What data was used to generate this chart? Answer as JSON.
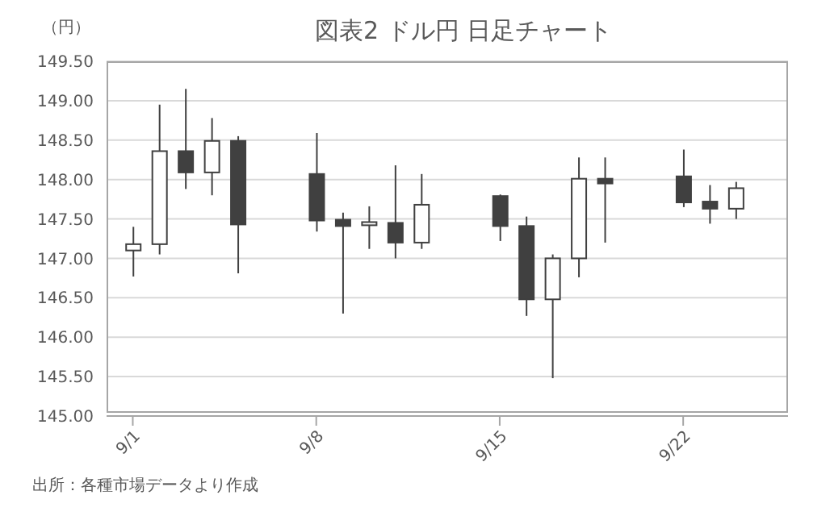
{
  "chart_data": {
    "type": "candlestick",
    "title": "図表2 ドル円 日足チャート",
    "ylabel": "（円）",
    "annotations": [
      "出所：各種市場データより作成"
    ],
    "x": [
      "--09-01",
      "--09-02",
      "--09-03",
      "--09-04",
      "--09-05",
      "--09-08",
      "--09-09",
      "--09-10",
      "--09-11",
      "--09-12",
      "--09-15",
      "--09-16",
      "--09-17",
      "--09-18",
      "--09-19",
      "--09-22",
      "--09-23",
      "--09-24"
    ],
    "ohlc": [
      [
        147.1,
        147.4,
        146.77,
        147.18
      ],
      [
        147.18,
        148.95,
        147.05,
        148.36
      ],
      [
        148.36,
        149.15,
        147.88,
        148.09
      ],
      [
        148.09,
        148.78,
        147.8,
        148.49
      ],
      [
        148.49,
        148.55,
        146.81,
        147.43
      ],
      [
        148.07,
        148.59,
        147.34,
        147.48
      ],
      [
        147.49,
        147.58,
        146.3,
        147.41
      ],
      [
        147.42,
        147.66,
        147.12,
        147.46
      ],
      [
        147.45,
        148.18,
        147.0,
        147.2
      ],
      [
        147.2,
        148.07,
        147.12,
        147.68
      ],
      [
        147.79,
        147.81,
        147.22,
        147.41
      ],
      [
        147.41,
        147.53,
        146.27,
        146.48
      ],
      [
        146.48,
        147.05,
        145.48,
        147.0
      ],
      [
        147.0,
        148.28,
        146.76,
        148.01
      ],
      [
        148.01,
        148.28,
        147.2,
        147.95
      ],
      [
        148.04,
        148.38,
        147.65,
        147.71
      ],
      [
        147.72,
        147.93,
        147.44,
        147.63
      ],
      [
        147.63,
        147.97,
        147.5,
        147.89
      ]
    ],
    "colors": [
      "#ffffff",
      "#ffffff",
      "#404040",
      "#ffffff",
      "#404040",
      "#404040",
      "#404040",
      "#ffffff",
      "#404040",
      "#ffffff",
      "#404040",
      "#404040",
      "#ffffff",
      "#ffffff",
      "#404040",
      "#404040",
      "#404040",
      "#ffffff"
    ],
    "xlim": [
      "--08-31",
      "--09-26"
    ],
    "xticks": [
      {
        "value": "--09-01",
        "label": "9/1"
      },
      {
        "value": "--09-08",
        "label": "9/8"
      },
      {
        "value": "--09-15",
        "label": "9/15"
      },
      {
        "value": "--09-22",
        "label": "9/22"
      }
    ],
    "ylim": [
      145,
      149.5
    ],
    "yticks": [
      {
        "value": 145,
        "label": "145.00"
      },
      {
        "value": 145.5,
        "label": "145.50"
      },
      {
        "value": 146,
        "label": "146.00"
      },
      {
        "value": 146.5,
        "label": "146.50"
      },
      {
        "value": 147,
        "label": "147.00"
      },
      {
        "value": 147.5,
        "label": "147.50"
      },
      {
        "value": 148,
        "label": "148.00"
      },
      {
        "value": 148.5,
        "label": "148.50"
      },
      {
        "value": 149,
        "label": "149.00"
      },
      {
        "value": 149.5,
        "label": "149.50"
      }
    ],
    "grid": "y",
    "legend": false
  }
}
